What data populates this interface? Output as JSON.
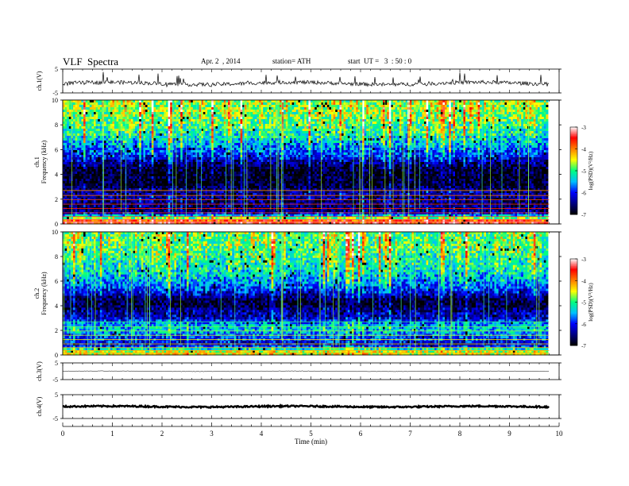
{
  "header": {
    "title": "VLF  Spectra",
    "date": "Apr. 2  , 2014",
    "station": "station= ATH",
    "start": "start  UT =   3  : 50 : 0"
  },
  "colorbar": {
    "label": "log(PSD)(V²/Hz)",
    "ticks": [
      "-3",
      "-4",
      "-5",
      "-6",
      "-7"
    ],
    "colors": [
      "#000000",
      "#000080",
      "#0000ff",
      "#00c0ff",
      "#00ff80",
      "#ffff00",
      "#ff8000",
      "#ff0000",
      "#ffffff"
    ]
  },
  "chart_data": [
    {
      "type": "line",
      "name": "ch1 waveform",
      "ylabel": "ch.1(V)",
      "yticks": [
        "5",
        "-5"
      ],
      "ylim": [
        -5,
        5
      ],
      "xlim": [
        0,
        10
      ],
      "baseline": -1.0,
      "data_ends_at": 9.8
    },
    {
      "type": "heatmap",
      "name": "ch1 spectrogram",
      "ylabel": "ch.1  Frequency (kHz)",
      "yticks": [
        "0",
        "2",
        "4",
        "6",
        "8",
        "10"
      ],
      "ylim": [
        0,
        10
      ],
      "xlim": [
        0,
        10
      ],
      "data_ends_at": 9.8,
      "clim": [
        -7,
        -3
      ],
      "profile": [
        {
          "f": 0.25,
          "v": -3.6
        },
        {
          "f": 0.55,
          "v": -5.2
        },
        {
          "f": 1.0,
          "v": -6.6
        },
        {
          "f": 2.0,
          "v": -6.5
        },
        {
          "f": 2.5,
          "v": -6.4
        },
        {
          "f": 3.0,
          "v": -6.8
        },
        {
          "f": 3.5,
          "v": -6.9
        },
        {
          "f": 4.0,
          "v": -6.9
        },
        {
          "f": 4.5,
          "v": -6.8
        },
        {
          "f": 5.0,
          "v": -6.5
        },
        {
          "f": 5.5,
          "v": -6.0
        },
        {
          "f": 6.0,
          "v": -5.8
        },
        {
          "f": 7.0,
          "v": -5.3
        },
        {
          "f": 8.0,
          "v": -5.0
        },
        {
          "f": 9.0,
          "v": -4.8
        },
        {
          "f": 10.0,
          "v": -4.8
        }
      ]
    },
    {
      "type": "heatmap",
      "name": "ch2 spectrogram",
      "ylabel": "ch.2  Frequency (kHz)",
      "yticks": [
        "0",
        "2",
        "4",
        "6",
        "8",
        "10"
      ],
      "ylim": [
        0,
        10
      ],
      "xlim": [
        0,
        10
      ],
      "data_ends_at": 9.8,
      "clim": [
        -7,
        -3
      ],
      "profile": [
        {
          "f": 0.25,
          "v": -4.5
        },
        {
          "f": 0.8,
          "v": -6.3
        },
        {
          "f": 1.5,
          "v": -5.9
        },
        {
          "f": 2.0,
          "v": -5.4
        },
        {
          "f": 2.5,
          "v": -5.6
        },
        {
          "f": 3.0,
          "v": -6.3
        },
        {
          "f": 3.5,
          "v": -6.4
        },
        {
          "f": 4.0,
          "v": -6.8
        },
        {
          "f": 4.5,
          "v": -6.8
        },
        {
          "f": 5.0,
          "v": -6.2
        },
        {
          "f": 5.5,
          "v": -5.9
        },
        {
          "f": 6.0,
          "v": -5.6
        },
        {
          "f": 7.0,
          "v": -5.3
        },
        {
          "f": 8.0,
          "v": -5.1
        },
        {
          "f": 9.0,
          "v": -5.0
        },
        {
          "f": 10.0,
          "v": -5.0
        }
      ]
    },
    {
      "type": "line",
      "name": "ch3 waveform",
      "ylabel": "ch.3(V)",
      "yticks": [
        "5",
        "-5"
      ],
      "ylim": [
        -5,
        5
      ],
      "xlim": [
        0,
        10
      ],
      "baseline": 0.0,
      "data_ends_at": 9.8
    },
    {
      "type": "line",
      "name": "ch4 waveform",
      "ylabel": "ch.4(V)",
      "yticks": [
        "5",
        "-5"
      ],
      "ylim": [
        -5,
        5
      ],
      "xlim": [
        0,
        10
      ],
      "baseline": 0.0,
      "data_ends_at": 9.8
    }
  ],
  "xaxis": {
    "label": "Time  (min)",
    "ticks": [
      "0",
      "1",
      "2",
      "3",
      "4",
      "5",
      "6",
      "7",
      "8",
      "9",
      "10"
    ]
  }
}
